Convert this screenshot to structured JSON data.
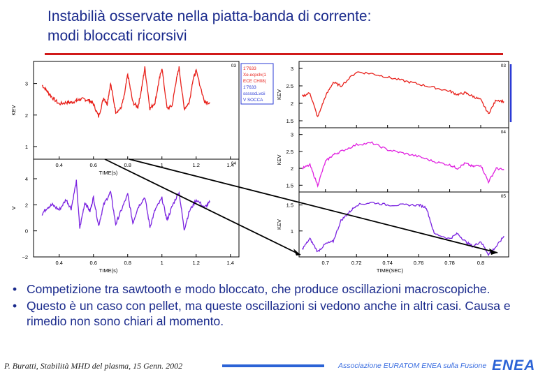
{
  "slide": {
    "title_line1": "Instabilià osservate nella piatta-banda di corrente:",
    "title_line2": "modi bloccati ricorsivi",
    "bullets": [
      "Competizione tra sawtooth e modo bloccato, che produce oscillazioni macroscopiche.",
      "Questo è un caso con pellet, ma queste oscillazioni si vedono anche in altri casi. Causa e rimedio non sono chiari al momento."
    ],
    "footer_author": "P. Buratti, Stabilità MHD del plasma, 15 Genn. 2002",
    "footer_association": "Associazione EURATOM ENEA sulla Fusione",
    "footer_logo": "ENEA",
    "colors": {
      "title": "#1a2a8c",
      "rule": "#d11a1a",
      "trace_red": "#e8201a",
      "trace_magenta": "#e020e0",
      "trace_purple": "#7a22e0",
      "accent_blue": "#2b63d6"
    }
  },
  "chart_data": [
    {
      "type": "line",
      "panel": "left-top",
      "xlabel": "TIME(s)",
      "ylabel": "KEV",
      "x_ticks": [
        "0.4",
        "0.6",
        "0.8",
        "1",
        "1.2",
        "1.4"
      ],
      "y_ticks": [
        "1",
        "2",
        "3"
      ],
      "corner_label": "03",
      "legend": [
        "1'7633",
        "Xe.ecpclv(1",
        "ECE CH08(",
        "1'7633",
        "ssssscLvcii",
        "V SOCCA"
      ],
      "series": [
        {
          "color": "#e8201a",
          "x": [
            0.3,
            0.33,
            0.36,
            0.4,
            0.44,
            0.47,
            0.5,
            0.52,
            0.55,
            0.58,
            0.6,
            0.63,
            0.66,
            0.68,
            0.7,
            0.73,
            0.76,
            0.78,
            0.8,
            0.83,
            0.86,
            0.88,
            0.9,
            0.93,
            0.96,
            0.98,
            1.0,
            1.03,
            1.06,
            1.08,
            1.1,
            1.13,
            1.16,
            1.18,
            1.2,
            1.25,
            1.28
          ],
          "y": [
            2.95,
            2.75,
            2.55,
            2.35,
            2.4,
            2.4,
            2.45,
            2.5,
            2.5,
            2.45,
            2.35,
            1.95,
            2.55,
            2.35,
            3.0,
            2.1,
            2.2,
            2.6,
            3.3,
            2.4,
            2.25,
            2.8,
            3.5,
            2.2,
            2.4,
            3.0,
            3.5,
            2.2,
            2.3,
            3.0,
            3.5,
            2.2,
            2.4,
            3.1,
            3.4,
            2.4,
            2.4
          ]
        }
      ]
    },
    {
      "type": "line",
      "panel": "left-bottom",
      "xlabel": "TIME(s)",
      "ylabel": "V",
      "x_ticks": [
        "0.4",
        "0.6",
        "0.8",
        "1",
        "1.2",
        "1.4"
      ],
      "y_ticks": [
        "−2",
        "0",
        "2",
        "4"
      ],
      "corner_label": "04",
      "series": [
        {
          "color": "#7a22e0",
          "x": [
            0.3,
            0.33,
            0.36,
            0.4,
            0.44,
            0.47,
            0.5,
            0.52,
            0.55,
            0.58,
            0.6,
            0.63,
            0.66,
            0.7,
            0.73,
            0.76,
            0.8,
            0.83,
            0.86,
            0.9,
            0.93,
            0.96,
            1.0,
            1.03,
            1.06,
            1.1,
            1.13,
            1.16,
            1.2,
            1.25,
            1.28
          ],
          "y": [
            1.3,
            1.8,
            2.0,
            1.6,
            2.4,
            1.7,
            3.8,
            0.2,
            2.2,
            1.5,
            2.6,
            0.4,
            2.0,
            3.0,
            0.5,
            1.5,
            2.8,
            0.6,
            1.8,
            2.6,
            0.3,
            1.6,
            2.5,
            0.8,
            1.9,
            3.0,
            0.1,
            1.5,
            2.4,
            1.8,
            2.2
          ]
        }
      ]
    },
    {
      "type": "line",
      "panel": "right-top",
      "ylabel": "KEV",
      "y_ticks": [
        "1.5",
        "2",
        "2.5",
        "3"
      ],
      "corner_label": "03",
      "series": [
        {
          "color": "#e8201a",
          "x": [
            0.685,
            0.69,
            0.695,
            0.7,
            0.705,
            0.71,
            0.72,
            0.73,
            0.74,
            0.75,
            0.76,
            0.77,
            0.78,
            0.785,
            0.79,
            0.795,
            0.8,
            0.805,
            0.81,
            0.815
          ],
          "y": [
            2.2,
            2.3,
            1.6,
            2.2,
            2.6,
            2.5,
            2.9,
            2.85,
            2.75,
            2.65,
            2.55,
            2.45,
            2.35,
            2.25,
            2.3,
            2.2,
            2.1,
            1.7,
            2.1,
            2.05
          ]
        }
      ]
    },
    {
      "type": "line",
      "panel": "right-middle",
      "ylabel": "KEV",
      "y_ticks": [
        "1.5",
        "2",
        "2.5",
        "3"
      ],
      "corner_label": "04",
      "series": [
        {
          "color": "#e020e0",
          "x": [
            0.685,
            0.69,
            0.695,
            0.7,
            0.705,
            0.71,
            0.72,
            0.73,
            0.74,
            0.75,
            0.76,
            0.77,
            0.78,
            0.785,
            0.79,
            0.795,
            0.8,
            0.805,
            0.81,
            0.815
          ],
          "y": [
            2.0,
            2.1,
            1.5,
            2.2,
            2.4,
            2.5,
            2.7,
            2.75,
            2.55,
            2.45,
            2.35,
            2.2,
            2.1,
            2.0,
            2.15,
            2.05,
            2.1,
            1.6,
            2.0,
            1.95
          ]
        }
      ]
    },
    {
      "type": "line",
      "panel": "right-bottom",
      "xlabel": "TIME(SEC)",
      "ylabel": "KEV",
      "x_ticks": [
        "0.7",
        "0.72",
        "0.74",
        "0.76",
        "0.78",
        "0.8"
      ],
      "y_ticks": [
        "1",
        "1.5"
      ],
      "corner_label": "05",
      "series": [
        {
          "color": "#7a22e0",
          "x": [
            0.685,
            0.69,
            0.695,
            0.7,
            0.705,
            0.71,
            0.715,
            0.72,
            0.73,
            0.74,
            0.75,
            0.76,
            0.765,
            0.77,
            0.78,
            0.785,
            0.79,
            0.795,
            0.8,
            0.805,
            0.81,
            0.815
          ],
          "y": [
            0.65,
            0.85,
            0.6,
            0.75,
            0.8,
            1.2,
            1.35,
            1.5,
            1.55,
            1.5,
            1.5,
            1.5,
            1.45,
            0.95,
            0.85,
            0.95,
            0.8,
            0.7,
            0.8,
            0.55,
            0.7,
            0.9
          ]
        }
      ]
    }
  ]
}
